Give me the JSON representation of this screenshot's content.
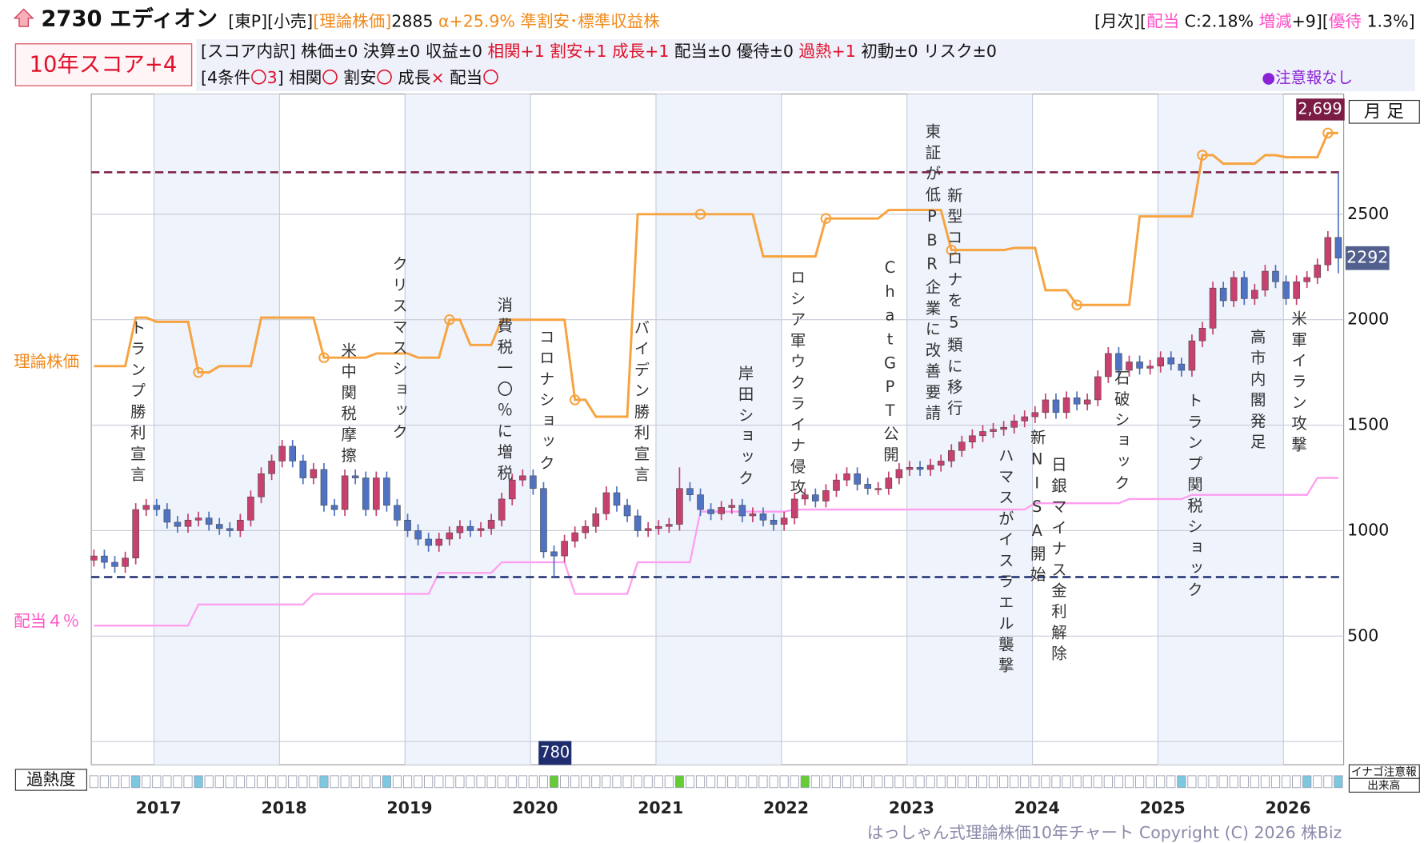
{
  "header": {
    "title": "2730 エディオン",
    "line1": [
      {
        "text": "[東P][小売]",
        "color": "#111111"
      },
      {
        "text": "[理論株価]",
        "color": "#f08a1c"
      },
      {
        "text": "2885",
        "color": "#111111"
      },
      {
        "text": " α+25.9%",
        "color": "#f08a1c"
      },
      {
        "text": " 準割安･標準収益株",
        "color": "#f08a1c"
      }
    ],
    "monthly": [
      {
        "text": "[月次][",
        "color": "#111111"
      },
      {
        "text": "配当",
        "color": "#ff4fc8"
      },
      {
        "text": " C:2.18% ",
        "color": "#111111"
      },
      {
        "text": "増減",
        "color": "#ff4fc8"
      },
      {
        "text": "+9][",
        "color": "#111111"
      },
      {
        "text": "優待",
        "color": "#ff4fc8"
      },
      {
        "text": " 1.3%]",
        "color": "#111111"
      }
    ],
    "score": "10年スコア+4",
    "breakdown": [
      {
        "text": "[スコア内訳] 株価±0 決算±0 収益±0 ",
        "color": "#111111"
      },
      {
        "text": "相関+1 割安+1 成長+1",
        "color": "#e0102a"
      },
      {
        "text": " 配当±0 優待±0 ",
        "color": "#111111"
      },
      {
        "text": "過熱+1",
        "color": "#e0102a"
      },
      {
        "text": " 初動±0 リスク±0",
        "color": "#111111"
      }
    ],
    "conditions": [
      {
        "text": "[4条件",
        "color": "#111111"
      },
      {
        "text": "〇3",
        "color": "#e0102a"
      },
      {
        "text": "] 相関",
        "color": "#111111"
      },
      {
        "text": "〇",
        "color": "#e0102a"
      },
      {
        "text": " 割安",
        "color": "#111111"
      },
      {
        "text": "〇",
        "color": "#e0102a"
      },
      {
        "text": " 成長",
        "color": "#111111"
      },
      {
        "text": "×",
        "color": "#e0102a"
      },
      {
        "text": " 配当",
        "color": "#111111"
      },
      {
        "text": "〇",
        "color": "#e0102a"
      }
    ],
    "alert": "●注意報なし"
  },
  "chart_data": {
    "type": "candlestick",
    "period_label": "月 足",
    "xlim": [
      2016.5,
      2026.48
    ],
    "xticks": [
      2017,
      2018,
      2019,
      2020,
      2021,
      2022,
      2023,
      2024,
      2025,
      2026
    ],
    "ylim": [
      -110,
      3070
    ],
    "yticks": [
      500,
      1000,
      1500,
      2000,
      2500
    ],
    "up_color": "#c8416e",
    "down_color": "#4f73c2",
    "open": [
      860,
      880,
      850,
      830,
      870,
      1100,
      1120,
      1100,
      1040,
      1020,
      1050,
      1060,
      1030,
      1010,
      1000,
      1050,
      1160,
      1270,
      1330,
      1400,
      1330,
      1250,
      1290,
      1120,
      1100,
      1260,
      1250,
      1100,
      1250,
      1120,
      1050,
      1000,
      960,
      930,
      960,
      990,
      1020,
      1000,
      1010,
      1050,
      1150,
      1240,
      1260,
      1200,
      900,
      880,
      950,
      990,
      1020,
      1080,
      1180,
      1120,
      1070,
      1000,
      1010,
      1020,
      1030,
      1200,
      1170,
      1100,
      1080,
      1110,
      1120,
      1070,
      1080,
      1050,
      1030,
      1060,
      1150,
      1170,
      1140,
      1190,
      1240,
      1270,
      1220,
      1200,
      1200,
      1250,
      1290,
      1300,
      1290,
      1310,
      1330,
      1380,
      1420,
      1450,
      1470,
      1480,
      1490,
      1520,
      1540,
      1560,
      1620,
      1560,
      1630,
      1600,
      1620,
      1730,
      1840,
      1760,
      1800,
      1770,
      1780,
      1820,
      1790,
      1760,
      1900,
      1960,
      2150,
      2090,
      2200,
      2100,
      2140,
      2230,
      2180,
      2100,
      2180,
      2200,
      2260,
      2390
    ],
    "high": [
      910,
      910,
      880,
      900,
      1130,
      1150,
      1150,
      1130,
      1070,
      1080,
      1090,
      1090,
      1060,
      1040,
      1080,
      1190,
      1300,
      1360,
      1430,
      1430,
      1360,
      1320,
      1320,
      1150,
      1290,
      1290,
      1280,
      1280,
      1280,
      1150,
      1080,
      1030,
      990,
      990,
      1020,
      1050,
      1050,
      1040,
      1080,
      1180,
      1270,
      1290,
      1290,
      1230,
      930,
      980,
      1020,
      1050,
      1110,
      1210,
      1210,
      1150,
      1100,
      1040,
      1050,
      1060,
      1300,
      1230,
      1200,
      1130,
      1140,
      1150,
      1150,
      1110,
      1110,
      1080,
      1090,
      1180,
      1200,
      1200,
      1220,
      1270,
      1300,
      1300,
      1250,
      1230,
      1280,
      1320,
      1330,
      1330,
      1340,
      1360,
      1410,
      1450,
      1480,
      1500,
      1510,
      1520,
      1550,
      1570,
      1590,
      1650,
      1650,
      1660,
      1660,
      1650,
      1760,
      1870,
      1870,
      1830,
      1830,
      1810,
      1850,
      1850,
      1820,
      1930,
      1990,
      2180,
      2180,
      2230,
      2230,
      2170,
      2260,
      2260,
      2210,
      2210,
      2230,
      2290,
      2420,
      2699
    ],
    "low": [
      830,
      820,
      800,
      800,
      840,
      1070,
      1070,
      1010,
      990,
      990,
      1020,
      1000,
      980,
      970,
      970,
      1020,
      1130,
      1240,
      1300,
      1300,
      1220,
      1220,
      1090,
      1070,
      1070,
      1220,
      1070,
      1070,
      1090,
      1020,
      970,
      930,
      900,
      900,
      930,
      960,
      970,
      970,
      980,
      1020,
      1120,
      1210,
      1170,
      870,
      780,
      850,
      920,
      960,
      990,
      1050,
      1090,
      1040,
      970,
      970,
      980,
      990,
      1000,
      1140,
      1070,
      1050,
      1050,
      1080,
      1040,
      1040,
      1020,
      1000,
      1000,
      1030,
      1120,
      1110,
      1110,
      1160,
      1210,
      1190,
      1170,
      1170,
      1170,
      1220,
      1260,
      1260,
      1260,
      1280,
      1300,
      1350,
      1390,
      1420,
      1440,
      1450,
      1460,
      1490,
      1510,
      1530,
      1530,
      1530,
      1570,
      1570,
      1590,
      1700,
      1730,
      1730,
      1740,
      1740,
      1750,
      1760,
      1730,
      1730,
      1870,
      1930,
      2060,
      2060,
      2070,
      2070,
      2110,
      2150,
      2070,
      2070,
      2150,
      2170,
      2230,
      2220
    ],
    "close": [
      880,
      850,
      830,
      870,
      1100,
      1120,
      1100,
      1040,
      1020,
      1050,
      1060,
      1030,
      1010,
      1000,
      1050,
      1160,
      1270,
      1330,
      1400,
      1330,
      1250,
      1290,
      1120,
      1100,
      1260,
      1250,
      1100,
      1250,
      1120,
      1050,
      1000,
      960,
      930,
      960,
      990,
      1020,
      1000,
      1010,
      1050,
      1150,
      1240,
      1260,
      1200,
      900,
      880,
      950,
      990,
      1020,
      1080,
      1180,
      1120,
      1070,
      1000,
      1010,
      1020,
      1030,
      1200,
      1170,
      1100,
      1080,
      1110,
      1120,
      1070,
      1080,
      1050,
      1030,
      1060,
      1150,
      1170,
      1140,
      1190,
      1240,
      1270,
      1220,
      1200,
      1200,
      1250,
      1290,
      1300,
      1290,
      1310,
      1330,
      1380,
      1420,
      1450,
      1470,
      1480,
      1490,
      1520,
      1540,
      1560,
      1620,
      1560,
      1630,
      1600,
      1620,
      1730,
      1840,
      1760,
      1800,
      1770,
      1780,
      1820,
      1790,
      1760,
      1900,
      1960,
      2150,
      2090,
      2200,
      2100,
      2140,
      2230,
      2180,
      2100,
      2180,
      2200,
      2260,
      2390,
      2292
    ],
    "series": [
      {
        "name": "理論株価",
        "color": "#f7a340",
        "values": [
          1780,
          1780,
          1780,
          1780,
          2010,
          2010,
          1990,
          1990,
          1990,
          1990,
          1750,
          1750,
          1780,
          1780,
          1780,
          1780,
          2010,
          2010,
          2010,
          2010,
          2010,
          2010,
          1820,
          1820,
          1820,
          1820,
          1820,
          1840,
          1840,
          1840,
          1840,
          1820,
          1820,
          1820,
          2000,
          2000,
          1880,
          1880,
          1880,
          2000,
          2000,
          2000,
          2000,
          2000,
          2000,
          2000,
          1620,
          1620,
          1540,
          1540,
          1540,
          1540,
          2500,
          2500,
          2500,
          2500,
          2500,
          2500,
          2500,
          2500,
          2500,
          2500,
          2500,
          2500,
          2300,
          2300,
          2300,
          2300,
          2300,
          2300,
          2480,
          2480,
          2480,
          2480,
          2480,
          2480,
          2520,
          2520,
          2520,
          2520,
          2520,
          2520,
          2330,
          2330,
          2330,
          2330,
          2330,
          2330,
          2340,
          2340,
          2340,
          2140,
          2140,
          2140,
          2070,
          2070,
          2070,
          2070,
          2070,
          2070,
          2490,
          2490,
          2490,
          2490,
          2490,
          2490,
          2780,
          2780,
          2740,
          2740,
          2740,
          2740,
          2780,
          2780,
          2770,
          2770,
          2770,
          2770,
          2885,
          2885
        ]
      },
      {
        "name": "配当４％",
        "color": "#ff9ef0",
        "values": [
          550,
          550,
          550,
          550,
          550,
          550,
          550,
          550,
          550,
          550,
          650,
          650,
          650,
          650,
          650,
          650,
          650,
          650,
          650,
          650,
          650,
          700,
          700,
          700,
          700,
          700,
          700,
          700,
          700,
          700,
          700,
          700,
          700,
          800,
          800,
          800,
          800,
          800,
          800,
          850,
          850,
          850,
          850,
          850,
          850,
          850,
          700,
          700,
          700,
          700,
          700,
          700,
          850,
          850,
          850,
          850,
          850,
          850,
          1090,
          1090,
          1090,
          1090,
          1090,
          1090,
          1090,
          1090,
          1090,
          1100,
          1100,
          1100,
          1100,
          1100,
          1100,
          1100,
          1100,
          1100,
          1100,
          1100,
          1100,
          1100,
          1100,
          1100,
          1100,
          1100,
          1100,
          1100,
          1100,
          1100,
          1100,
          1100,
          1130,
          1130,
          1130,
          1130,
          1130,
          1130,
          1130,
          1130,
          1130,
          1150,
          1150,
          1150,
          1150,
          1150,
          1150,
          1170,
          1170,
          1170,
          1170,
          1170,
          1170,
          1170,
          1170,
          1170,
          1170,
          1170,
          1170,
          1250,
          1250,
          1250
        ]
      }
    ],
    "hlines": [
      {
        "value": 2699,
        "label": "2,699",
        "color": "#7a1c44"
      },
      {
        "value": 780,
        "color": "#1f2d6e"
      }
    ],
    "events": [
      "トランプ勝利宣言",
      "米中関税摩擦",
      "クリスマスショック",
      "消費税一〇％に増税",
      "コロナショック",
      "バイデン勝利宣言",
      "岸田ショック",
      "ロシア軍ウクライナ侵攻",
      "ChatGPT公開",
      "東証が低PBR企業に改善要請",
      "新型コロナを5類に移行",
      "ハマスがイスラエル襲撃",
      "新NISA開始",
      "日銀マイナス金利解除",
      "石破ショック",
      "トランプ関税ショック",
      "高市内閣発足",
      "米軍イラン攻撃"
    ],
    "overheat": {
      "label": "過熱度",
      "warm": [
        4,
        10,
        22,
        28,
        104,
        116,
        119
      ],
      "hot": [
        44,
        56,
        68
      ]
    },
    "side_labels": [
      "イナゴ注意報",
      "出来高"
    ],
    "copyright": "はっしゃん式理論株価10年チャート Copyright (C) 2026 株Biz"
  }
}
